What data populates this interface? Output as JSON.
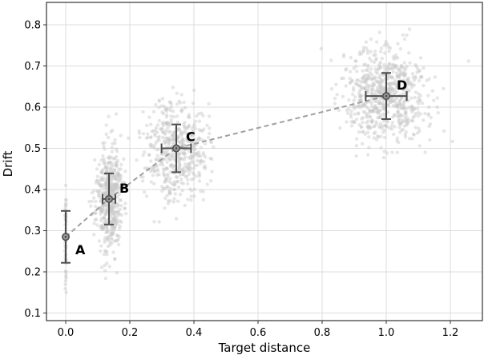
{
  "chart_data": {
    "type": "scatter",
    "title": "",
    "xlabel": "Target distance",
    "ylabel": "Drift",
    "xlim": [
      -0.06,
      1.3
    ],
    "ylim": [
      0.09,
      0.86
    ],
    "xticks": [
      0.0,
      0.2,
      0.4,
      0.6,
      0.8,
      1.0,
      1.2
    ],
    "xtick_labels": [
      "0.0",
      "0.2",
      "0.4",
      "0.6",
      "0.8",
      "1.0",
      "1.2"
    ],
    "yticks": [
      0.1,
      0.2,
      0.3,
      0.4,
      0.5,
      0.6,
      0.7,
      0.8
    ],
    "ytick_labels": [
      "0.1",
      "0.2",
      "0.3",
      "0.4",
      "0.5",
      "0.6",
      "0.7",
      "0.8"
    ],
    "grid": true,
    "legend": null,
    "summary_points": [
      {
        "label": "A",
        "x": 0.0,
        "y": 0.285,
        "xerr": 0.0,
        "yerr": 0.063
      },
      {
        "label": "B",
        "x": 0.135,
        "y": 0.377,
        "xerr": 0.02,
        "yerr": 0.062
      },
      {
        "label": "C",
        "x": 0.345,
        "y": 0.5,
        "xerr": 0.046,
        "yerr": 0.058
      },
      {
        "label": "D",
        "x": 1.0,
        "y": 0.627,
        "xerr": 0.064,
        "yerr": 0.056
      }
    ],
    "connecting_line": {
      "style": "dashed",
      "color": "#a0a0a0",
      "through": [
        "A",
        "B",
        "C",
        "D"
      ]
    },
    "clusters": [
      {
        "name": "A",
        "cx": 0.0,
        "cy": 0.285,
        "sx": 0.0,
        "sy": 0.06,
        "n": 60,
        "seed": 11
      },
      {
        "name": "B",
        "cx": 0.135,
        "cy": 0.377,
        "sx": 0.02,
        "sy": 0.062,
        "n": 500,
        "seed": 23
      },
      {
        "name": "C",
        "cx": 0.345,
        "cy": 0.5,
        "sx": 0.046,
        "sy": 0.058,
        "n": 500,
        "seed": 37
      },
      {
        "name": "D",
        "cx": 1.0,
        "cy": 0.627,
        "sx": 0.064,
        "sy": 0.056,
        "n": 700,
        "seed": 51
      }
    ],
    "colors": {
      "scatter": "#c8c8c8",
      "errorbar": "#4d4d4d",
      "grid": "#dcdcdc",
      "axes": "#333333"
    }
  }
}
